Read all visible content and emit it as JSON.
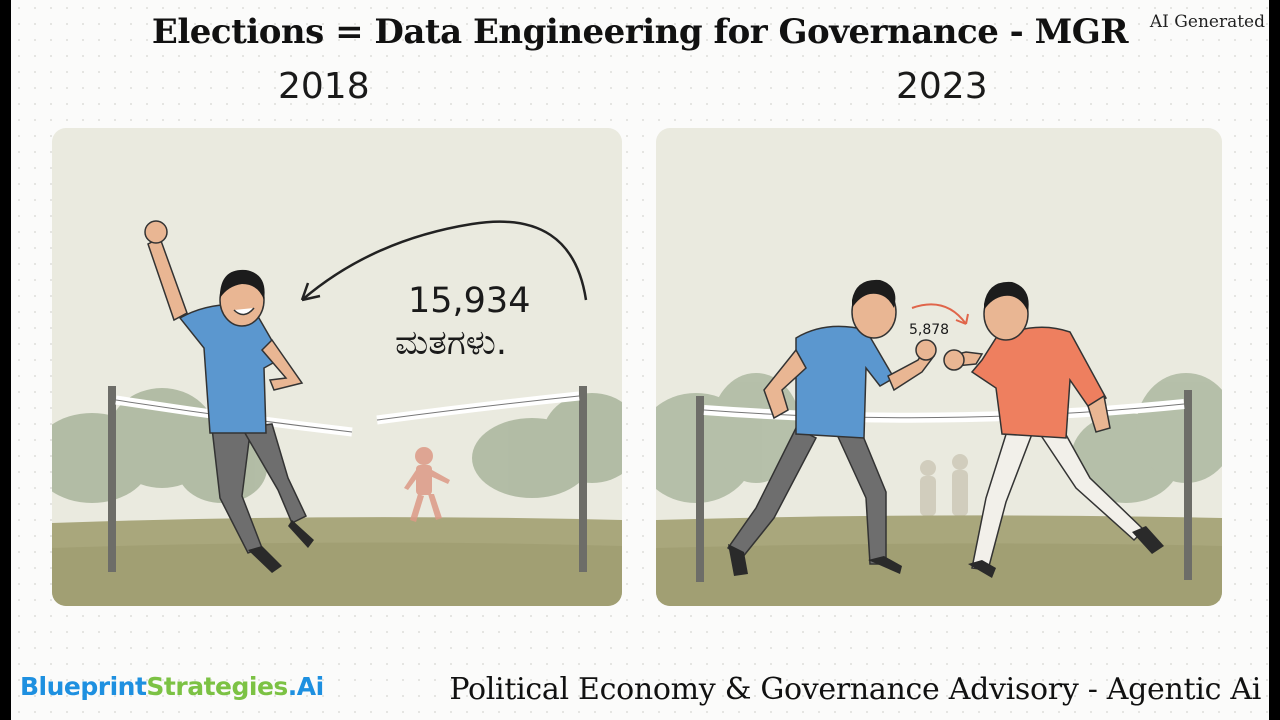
{
  "header": {
    "title": "Elections = Data Engineering for Governance - MGR",
    "badge": "AI Generated"
  },
  "panels": [
    {
      "year": "2018",
      "margin_number": "15,934",
      "margin_text": "ಮತಗಳು."
    },
    {
      "year": "2023",
      "margin_number": "5,878"
    }
  ],
  "footer": {
    "logo_part1": "Blueprint",
    "logo_part2": "Strategies",
    "logo_part3": ".Ai",
    "tagline": "Political Economy & Governance Advisory - Agentic Ai"
  },
  "colors": {
    "blue_shirt": "#5b97cf",
    "orange_shirt": "#ee7f5f",
    "logo_blue": "#1e90e0",
    "logo_green": "#7cc244"
  }
}
